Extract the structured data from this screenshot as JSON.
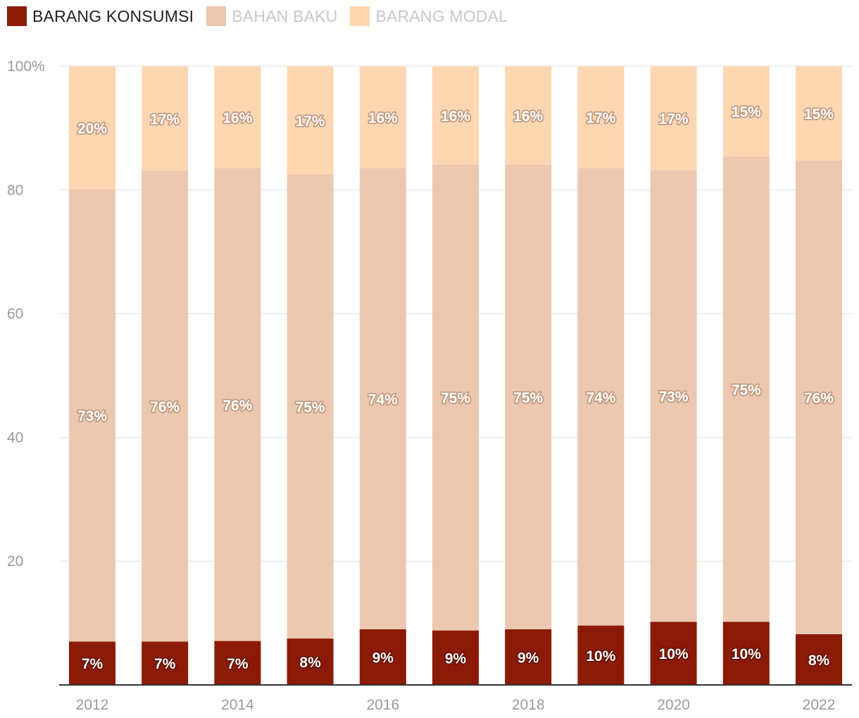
{
  "chart_data": {
    "type": "bar",
    "stacked": true,
    "categories": [
      "2012",
      "2013",
      "2014",
      "2015",
      "2016",
      "2017",
      "2018",
      "2019",
      "2020",
      "2021",
      "2022"
    ],
    "x_tick_labels": [
      "2012",
      "",
      "2014",
      "",
      "2016",
      "",
      "2018",
      "",
      "2020",
      "",
      "2022"
    ],
    "series": [
      {
        "name": "BARANG KONSUMSI",
        "color": "#8b1a06",
        "muted": false,
        "values": [
          7.0,
          7.0,
          7.1,
          7.5,
          9.0,
          8.8,
          9.0,
          9.6,
          10.2,
          10.2,
          8.2
        ],
        "labels": [
          "7%",
          "7%",
          "7%",
          "8%",
          "9%",
          "9%",
          "9%",
          "10%",
          "10%",
          "10%",
          "8%"
        ]
      },
      {
        "name": "BAHAN BAKU",
        "color": "#ecc8b0",
        "muted": true,
        "values": [
          73.1,
          76.1,
          76.4,
          75.0,
          74.5,
          75.3,
          75.1,
          73.9,
          73.0,
          75.2,
          76.5
        ],
        "labels": [
          "73%",
          "76%",
          "76%",
          "75%",
          "74%",
          "75%",
          "75%",
          "74%",
          "73%",
          "75%",
          "76%"
        ]
      },
      {
        "name": "BARANG MODAL",
        "color": "#fdd7b2",
        "muted": true,
        "values": [
          19.9,
          16.9,
          16.5,
          17.5,
          16.5,
          15.9,
          15.9,
          16.5,
          16.8,
          14.6,
          15.3
        ],
        "labels": [
          "20%",
          "17%",
          "16%",
          "17%",
          "16%",
          "16%",
          "16%",
          "17%",
          "17%",
          "15%",
          "15%"
        ]
      }
    ],
    "ylim": [
      0,
      100
    ],
    "yticks": [
      20,
      40,
      60,
      80,
      100
    ],
    "ytick_labels": [
      "20",
      "40",
      "60",
      "80",
      "100%"
    ],
    "grid": true,
    "legend_position": "top-left",
    "title": "",
    "xlabel": "",
    "ylabel": ""
  }
}
